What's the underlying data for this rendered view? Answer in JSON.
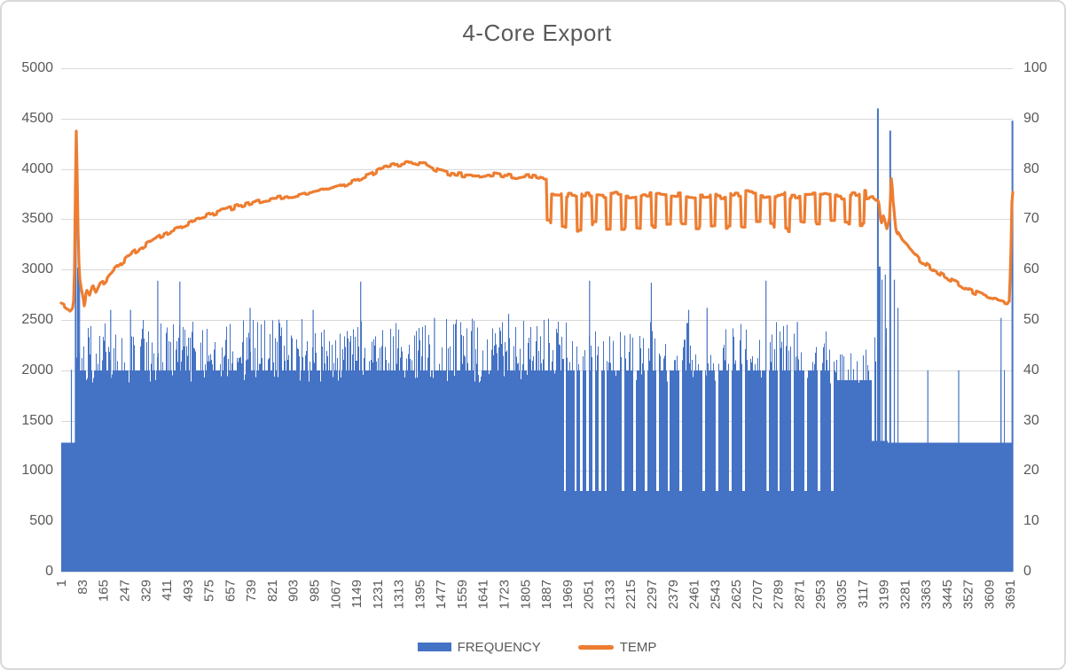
{
  "chart_data": {
    "type": "combo-bar-line",
    "title": "4-Core Export",
    "grid": "horizontal",
    "legend_position": "bottom",
    "colors": {
      "gridline": "#D9D9D9",
      "axis_text": "#595959",
      "title_text": "#595959"
    },
    "x": {
      "count": 3700,
      "tick_start": 1,
      "tick_step": 82,
      "ticks": [
        1,
        83,
        165,
        247,
        329,
        411,
        493,
        575,
        657,
        739,
        821,
        903,
        985,
        1067,
        1149,
        1231,
        1313,
        1395,
        1477,
        1559,
        1641,
        1723,
        1805,
        1887,
        1969,
        2051,
        2133,
        2215,
        2297,
        2379,
        2461,
        2543,
        2625,
        2707,
        2789,
        2871,
        2953,
        3035,
        3117,
        3199,
        3281,
        3363,
        3445,
        3527,
        3609,
        3691
      ]
    },
    "y_left": {
      "min": 0,
      "max": 5000,
      "step": 500,
      "ticks": [
        0,
        500,
        1000,
        1500,
        2000,
        2500,
        3000,
        3500,
        4000,
        4500,
        5000
      ]
    },
    "y_right": {
      "min": 0,
      "max": 100,
      "step": 10,
      "ticks": [
        0,
        10,
        20,
        30,
        40,
        50,
        60,
        70,
        80,
        90,
        100
      ]
    },
    "series": [
      {
        "name": "FREQUENCY",
        "type": "bar",
        "axis": "left",
        "color": "#4472C4",
        "segments": [
          {
            "from": 1,
            "to": 55,
            "base": 1280,
            "spike_p": 0,
            "spike_lo": 0,
            "spike_hi": 0,
            "dip_p": 0
          },
          {
            "from": 56,
            "to": 1950,
            "base": 2000,
            "spike_p": 0.48,
            "spike_lo": 2060,
            "spike_hi": 2520,
            "dip_p": 0.07,
            "dip_lo": 1870,
            "dip_hi": 1970
          },
          {
            "from": 1951,
            "to": 3010,
            "base": 2000,
            "spike_p": 0.44,
            "spike_lo": 2060,
            "spike_hi": 2480,
            "dip_p": 0.06,
            "dip_lo": 1870,
            "dip_hi": 1970
          },
          {
            "from": 3011,
            "to": 3150,
            "base": 1900,
            "spike_p": 0.35,
            "spike_lo": 1980,
            "spike_hi": 2300,
            "dip_p": 0.05,
            "dip_lo": 1800,
            "dip_hi": 1880
          },
          {
            "from": 3151,
            "to": 3215,
            "base": 1300,
            "spike_p": 0.3,
            "spike_lo": 1900,
            "spike_hi": 3000,
            "dip_p": 0
          },
          {
            "from": 3216,
            "to": 3640,
            "base": 1280,
            "spike_p": 0.02,
            "spike_lo": 2000,
            "spike_hi": 2010,
            "dip_p": 0
          },
          {
            "from": 3641,
            "to": 3700,
            "base": 1280,
            "spike_p": 0.28,
            "spike_lo": 2000,
            "spike_hi": 2060,
            "dip_p": 0
          }
        ],
        "gaps": {
          "value": 800,
          "positions": [
            [
              1958,
              8
            ],
            [
              2000,
              9
            ],
            [
              2022,
              8
            ],
            [
              2046,
              9
            ],
            [
              2070,
              9
            ],
            [
              2094,
              9
            ],
            [
              2118,
              8
            ],
            [
              2185,
              10
            ],
            [
              2230,
              10
            ],
            [
              2274,
              10
            ],
            [
              2318,
              10
            ],
            [
              2362,
              9
            ],
            [
              2410,
              10
            ],
            [
              2497,
              11
            ],
            [
              2549,
              10
            ],
            [
              2601,
              10
            ],
            [
              2653,
              10
            ],
            [
              2746,
              11
            ],
            [
              2790,
              9
            ],
            [
              2842,
              10
            ],
            [
              2894,
              10
            ],
            [
              2946,
              10
            ],
            [
              2998,
              10
            ]
          ]
        },
        "spikes": [
          [
            40,
            2005
          ],
          [
            57,
            3600
          ],
          [
            66,
            3020
          ],
          [
            72,
            2950
          ],
          [
            193,
            2600
          ],
          [
            270,
            2600
          ],
          [
            376,
            2890
          ],
          [
            462,
            2880
          ],
          [
            735,
            2620
          ],
          [
            980,
            2600
          ],
          [
            1165,
            2880
          ],
          [
            1452,
            2520
          ],
          [
            1740,
            2560
          ],
          [
            2055,
            2890
          ],
          [
            2295,
            2870
          ],
          [
            2440,
            2600
          ],
          [
            2512,
            2620
          ],
          [
            2741,
            2890
          ],
          [
            2863,
            2480
          ],
          [
            3176,
            4600
          ],
          [
            3183,
            3030
          ],
          [
            3192,
            2900
          ],
          [
            3205,
            2950
          ],
          [
            3224,
            4380
          ],
          [
            3240,
            2900
          ],
          [
            3254,
            2620
          ],
          [
            3370,
            2000
          ],
          [
            3490,
            2000
          ],
          [
            3655,
            2520
          ],
          [
            3699,
            4480
          ]
        ]
      },
      {
        "name": "TEMP",
        "type": "line",
        "axis": "right",
        "color": "#ED7D31",
        "jitter": 0.45,
        "keypoints": [
          [
            1,
            53.2
          ],
          [
            20,
            52.8
          ],
          [
            36,
            52.0
          ],
          [
            46,
            52.6
          ],
          [
            52,
            55.0
          ],
          [
            56,
            70.0
          ],
          [
            59,
            88.5
          ],
          [
            62,
            86.0
          ],
          [
            66,
            70.0
          ],
          [
            72,
            59.0
          ],
          [
            80,
            56.2
          ],
          [
            86,
            55.0
          ],
          [
            92,
            52.8
          ],
          [
            100,
            55.8
          ],
          [
            112,
            54.8
          ],
          [
            124,
            56.8
          ],
          [
            136,
            55.2
          ],
          [
            152,
            57.0
          ],
          [
            172,
            57.6
          ],
          [
            200,
            59.5
          ],
          [
            240,
            61.5
          ],
          [
            280,
            63.2
          ],
          [
            330,
            65.0
          ],
          [
            390,
            66.8
          ],
          [
            450,
            68.2
          ],
          [
            520,
            69.8
          ],
          [
            600,
            71.2
          ],
          [
            680,
            72.4
          ],
          [
            760,
            73.4
          ],
          [
            840,
            74.2
          ],
          [
            920,
            74.8
          ],
          [
            1000,
            75.4
          ],
          [
            1080,
            76.4
          ],
          [
            1140,
            77.6
          ],
          [
            1200,
            78.8
          ],
          [
            1250,
            80.2
          ],
          [
            1300,
            80.8
          ],
          [
            1360,
            81.3
          ],
          [
            1420,
            80.9
          ],
          [
            1470,
            79.6
          ],
          [
            1520,
            79.0
          ],
          [
            1600,
            78.6
          ],
          [
            1680,
            79.0
          ],
          [
            1760,
            78.4
          ],
          [
            1820,
            78.8
          ],
          [
            1885,
            78.2
          ],
          [
            3135,
            74.0
          ],
          [
            3160,
            74.3
          ],
          [
            3180,
            73.5
          ],
          [
            3190,
            69.0
          ],
          [
            3200,
            71.0
          ],
          [
            3212,
            68.5
          ],
          [
            3222,
            70.0
          ],
          [
            3230,
            79.0
          ],
          [
            3236,
            74.0
          ],
          [
            3248,
            68.0
          ],
          [
            3270,
            66.0
          ],
          [
            3300,
            64.2
          ],
          [
            3340,
            62.0
          ],
          [
            3380,
            60.5
          ],
          [
            3420,
            59.2
          ],
          [
            3460,
            58.0
          ],
          [
            3500,
            56.8
          ],
          [
            3540,
            55.8
          ],
          [
            3580,
            55.0
          ],
          [
            3620,
            54.2
          ],
          [
            3650,
            53.8
          ],
          [
            3678,
            53.4
          ],
          [
            3688,
            53.6
          ],
          [
            3694,
            62.0
          ],
          [
            3699,
            75.5
          ]
        ],
        "oscillation": {
          "from": 1890,
          "to": 3130,
          "period": 58,
          "low": 68.5,
          "high": 74.8,
          "low_frac": 0.3,
          "low_var": 1.0,
          "high_var": 0.6
        }
      }
    ]
  }
}
